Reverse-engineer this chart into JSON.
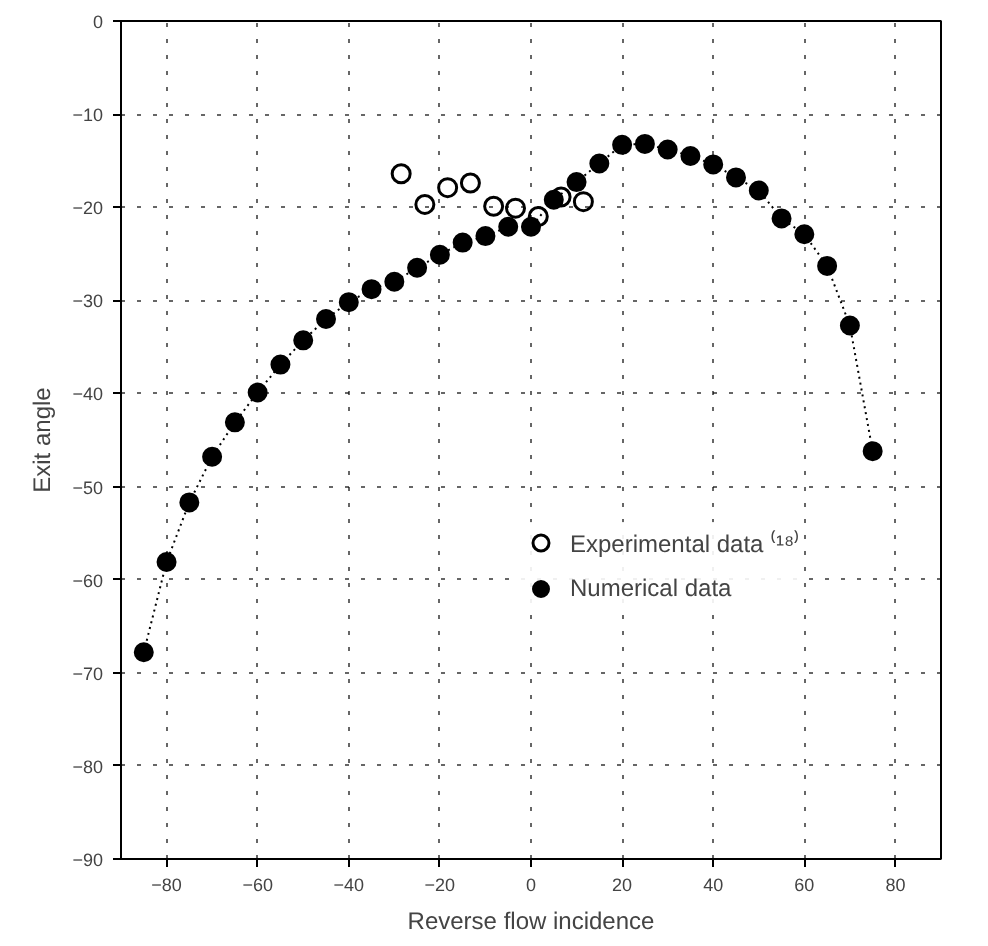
{
  "chart_data": {
    "type": "line",
    "xlabel": "Reverse flow incidence",
    "ylabel": "Exit angle",
    "xlim": [
      -90,
      90
    ],
    "ylim": [
      -90,
      0
    ],
    "xticks": [
      -80,
      -60,
      -40,
      -20,
      0,
      20,
      40,
      60,
      80
    ],
    "yticks": [
      -90,
      -80,
      -70,
      -60,
      -50,
      -40,
      -30,
      -20,
      -10,
      0
    ],
    "grid": true,
    "legend": "right",
    "series": [
      {
        "name": "Experimental data ⁽¹⁸⁾",
        "type": "scatter",
        "marker": "circle",
        "color": "#000000",
        "x": [
          -28.5,
          -23.3,
          -18.3,
          -13.3,
          -8.2,
          -3.4,
          1.6,
          6.6,
          11.5
        ],
        "values": [
          -16.4,
          -19.7,
          -17.9,
          -17.4,
          -19.9,
          -20.1,
          -21.0,
          -18.9,
          -19.4
        ]
      },
      {
        "name": "Numerical data",
        "marker": "circle",
        "line_style": "dotted",
        "color": "#000000",
        "x": [
          -85,
          -80,
          -75,
          -70,
          -65,
          -60,
          -55,
          -50,
          -45,
          -40,
          -35,
          -30,
          -25,
          -20,
          -15,
          -10,
          -5,
          0,
          5,
          10,
          15,
          20,
          25,
          30,
          35,
          40,
          45,
          50,
          55,
          60,
          65,
          70,
          75
        ],
        "values": [
          -67.8,
          -58.1,
          -51.7,
          -46.8,
          -43.1,
          -39.9,
          -36.9,
          -34.3,
          -32.0,
          -30.2,
          -28.8,
          -28.0,
          -26.5,
          -25.1,
          -23.8,
          -23.1,
          -22.1,
          -22.1,
          -19.2,
          -17.3,
          -15.3,
          -13.3,
          -13.2,
          -13.8,
          -14.5,
          -15.4,
          -16.8,
          -18.2,
          -21.2,
          -22.9,
          -26.3,
          -32.7,
          -46.2
        ]
      }
    ]
  }
}
